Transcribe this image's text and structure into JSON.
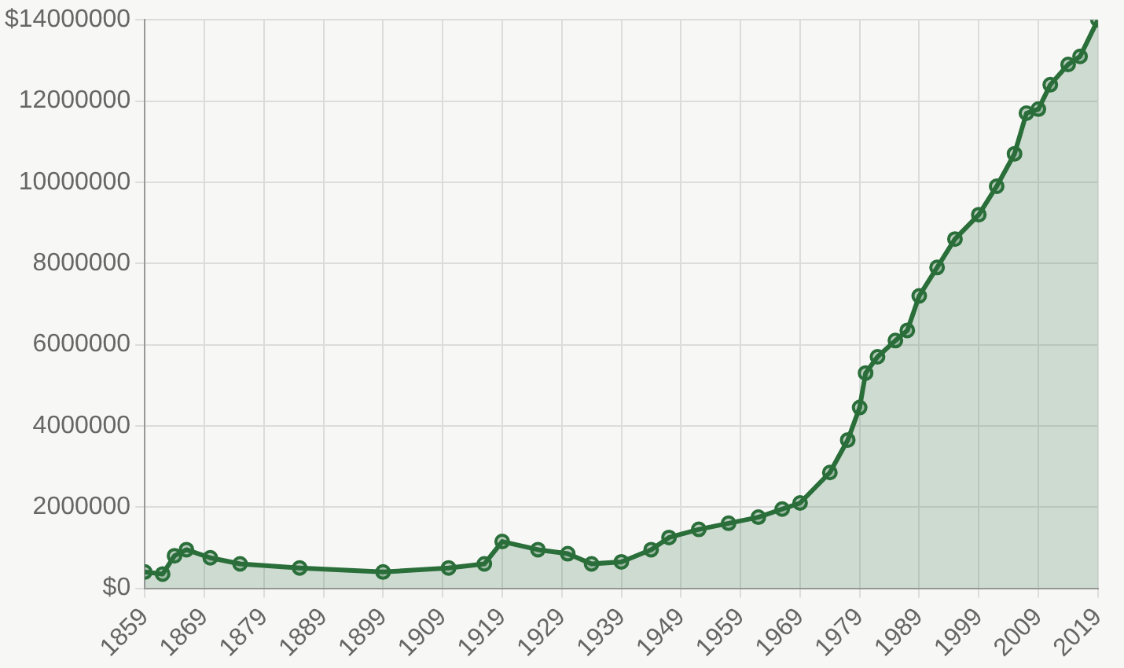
{
  "chart_data": {
    "type": "area",
    "x": [
      1859,
      1862,
      1864,
      1866,
      1870,
      1875,
      1885,
      1899,
      1910,
      1916,
      1919,
      1925,
      1930,
      1934,
      1939,
      1944,
      1947,
      1952,
      1957,
      1962,
      1966,
      1969,
      1974,
      1977,
      1979,
      1980,
      1982,
      1985,
      1987,
      1989,
      1992,
      1995,
      1999,
      2002,
      2005,
      2007,
      2009,
      2011,
      2014,
      2016,
      2019
    ],
    "series": [
      {
        "color": "#2a6e3a",
        "values": [
          400000,
          350000,
          800000,
          950000,
          750000,
          600000,
          500000,
          400000,
          500000,
          600000,
          1150000,
          950000,
          850000,
          600000,
          650000,
          950000,
          1250000,
          1450000,
          1600000,
          1750000,
          1950000,
          2100000,
          2850000,
          3650000,
          4450000,
          5300000,
          5700000,
          6100000,
          6350000,
          7200000,
          7900000,
          8600000,
          9200000,
          9900000,
          10700000,
          11700000,
          11800000,
          12400000,
          12900000,
          13100000,
          14000000
        ]
      }
    ],
    "xlim": [
      1859,
      2019
    ],
    "xticks": [
      1859,
      1869,
      1879,
      1889,
      1899,
      1909,
      1919,
      1929,
      1939,
      1949,
      1959,
      1969,
      1979,
      1989,
      1999,
      2009,
      2019
    ],
    "ylim": [
      0,
      14000000
    ],
    "yticks": [
      {
        "value": 0,
        "label": "$0"
      },
      2000000,
      4000000,
      6000000,
      8000000,
      10000000,
      12000000,
      {
        "value": 14000000,
        "label": "$14000000"
      }
    ],
    "grid": true,
    "marker": "circle",
    "legend": false
  }
}
